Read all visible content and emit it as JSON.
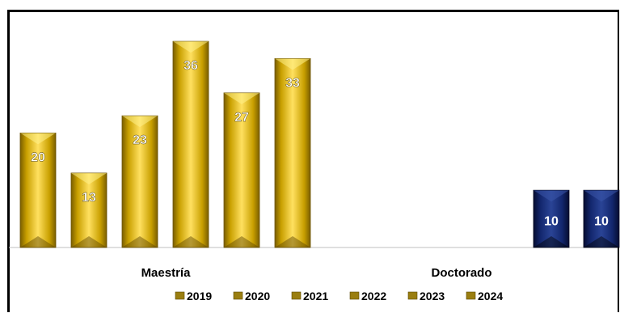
{
  "chart_data": {
    "type": "bar",
    "categories": [
      "Maestría",
      "Doctorado"
    ],
    "series": [
      {
        "name": "2019",
        "values": [
          20,
          null
        ]
      },
      {
        "name": "2020",
        "values": [
          13,
          null
        ]
      },
      {
        "name": "2021",
        "values": [
          23,
          null
        ]
      },
      {
        "name": "2022",
        "values": [
          36,
          null
        ]
      },
      {
        "name": "2023",
        "values": [
          27,
          10
        ]
      },
      {
        "name": "2024",
        "values": [
          33,
          10
        ]
      }
    ],
    "title": "",
    "xlabel": "",
    "ylabel": "",
    "legend_position": "bottom",
    "grid": false,
    "colors": {
      "maestria_bar": "#D4A800",
      "doctorado_bar": "#0D1E5C",
      "legend_marker": "#9A7E10"
    }
  }
}
